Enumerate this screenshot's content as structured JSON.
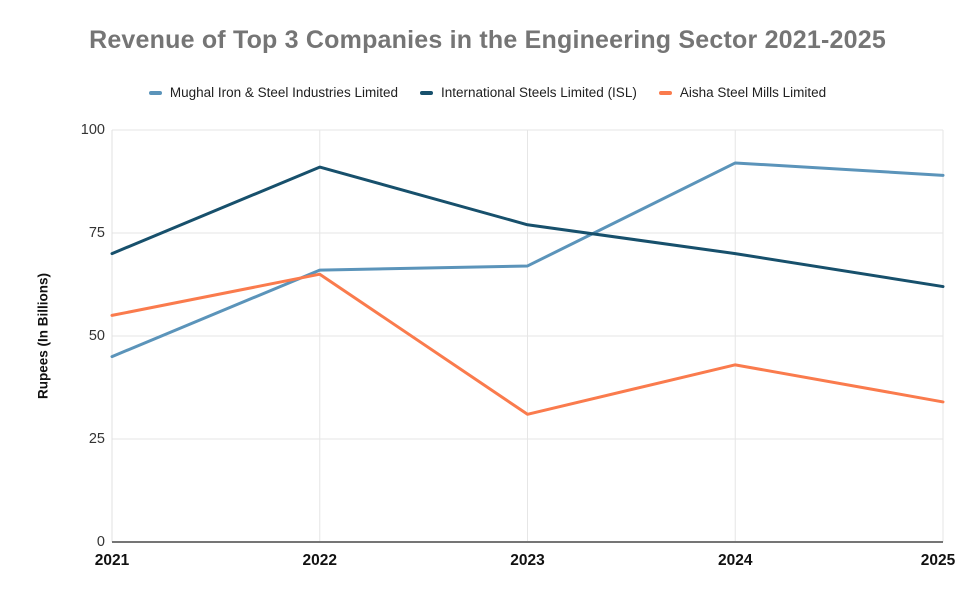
{
  "chart_data": {
    "type": "line",
    "title": "Revenue of Top 3 Companies in the Engineering Sector 2021-2025",
    "categories": [
      "2021",
      "2022",
      "2023",
      "2024",
      "2025"
    ],
    "series": [
      {
        "name": "Mughal Iron & Steel Industries Limited",
        "color": "#5B94BA",
        "values": [
          45,
          66,
          67,
          92,
          89
        ]
      },
      {
        "name": "International Steels Limited (ISL)",
        "color": "#17506C",
        "values": [
          70,
          91,
          77,
          70,
          62
        ]
      },
      {
        "name": "Aisha Steel Mills Limited",
        "color": "#FA7B4D",
        "values": [
          55,
          65,
          31,
          43,
          34
        ]
      }
    ],
    "xlabel": "",
    "ylabel": "Rupees (In Billions)",
    "ylim": [
      0,
      100
    ],
    "yticks": [
      0,
      25,
      50,
      75,
      100
    ],
    "grid": true,
    "legend_position": "top",
    "colors": {
      "title_text": "#757575",
      "gridline": "#E6E6E6",
      "plot_border": "#E0E0E0",
      "x_axis_line": "#757575",
      "tick_text": "#333333",
      "label_text": "#111111"
    }
  }
}
